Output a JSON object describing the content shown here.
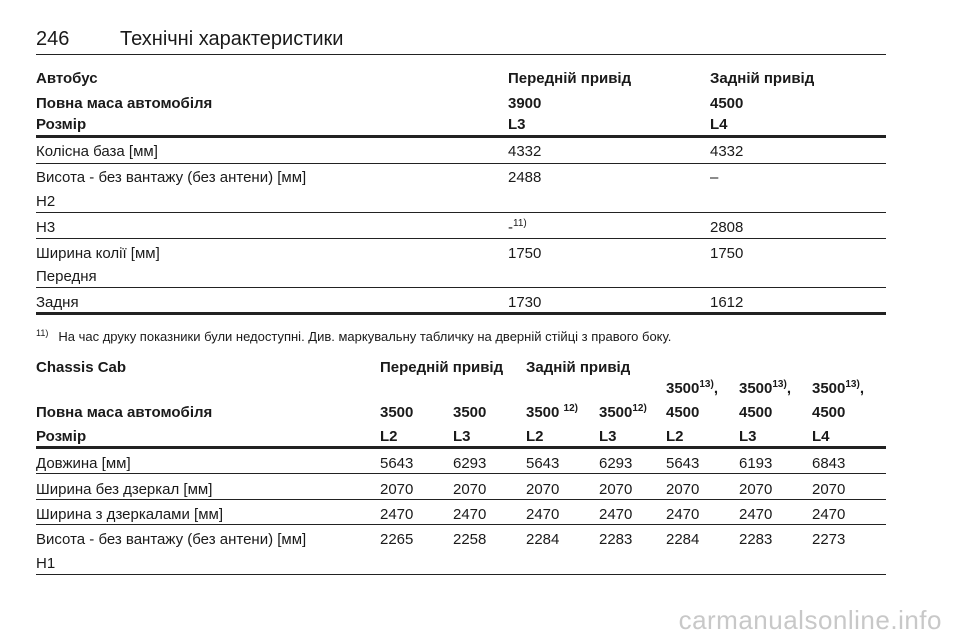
{
  "page": {
    "number": "246",
    "title": "Технічні характеристики"
  },
  "table1": {
    "header": {
      "vehicle_label": "Автобус",
      "front_drive": "Передній привід",
      "rear_drive": "Задній привід",
      "gvw_label": "Повна маса автомобіля",
      "gvw_front": "3900",
      "gvw_rear": "4500",
      "size_label": "Розмір",
      "size_front": "L3",
      "size_rear": "L4"
    },
    "rows": {
      "wheelbase": {
        "label": "Колісна база [мм]",
        "front": "4332",
        "rear": "4332"
      },
      "height": {
        "label": "Висота - без вантажу (без антени) [мм]",
        "sublabel": "H2",
        "front": "2488",
        "rear": "–"
      },
      "h3": {
        "label": "H3",
        "front": "-",
        "front_sup": "11)",
        "rear": "2808"
      },
      "track": {
        "label": "Ширина колії [мм]",
        "sublabel": "Передня",
        "front": "1750",
        "rear": "1750"
      },
      "rear_track": {
        "label": "Задня",
        "front": "1730",
        "rear": "1612"
      }
    }
  },
  "footnote": {
    "mark": "11)",
    "text": "На час друку показники були недоступні. Див. маркувальну табличку на дверній стійці з правого боку."
  },
  "table2": {
    "header": {
      "vehicle_label": "Chassis Cab",
      "front_drive": "Передній привід",
      "rear_drive": "Задній привід",
      "gvw_label": "Повна маса автомобіля",
      "gvw": [
        {
          "top": "",
          "main": "3500",
          "sup": ""
        },
        {
          "top": "",
          "main": "3500",
          "sup": ""
        },
        {
          "top": "",
          "main": "3500 ",
          "sup": "12)"
        },
        {
          "top": "",
          "main": "3500",
          "sup": "12)"
        },
        {
          "top": "3500",
          "top_sup": "13)",
          "top_suffix": ",",
          "main": "4500",
          "sup": ""
        },
        {
          "top": "3500",
          "top_sup": "13)",
          "top_suffix": ",",
          "main": "4500",
          "sup": ""
        },
        {
          "top": "3500",
          "top_sup": "13)",
          "top_suffix": ",",
          "main": "4500",
          "sup": ""
        }
      ],
      "size_label": "Розмір",
      "sizes": [
        "L2",
        "L3",
        "L2",
        "L3",
        "L2",
        "L3",
        "L4"
      ]
    },
    "rows": [
      {
        "label": "Довжина [мм]",
        "values": [
          "5643",
          "6293",
          "5643",
          "6293",
          "5643",
          "6193",
          "6843"
        ]
      },
      {
        "label": "Ширина без дзеркал [мм]",
        "values": [
          "2070",
          "2070",
          "2070",
          "2070",
          "2070",
          "2070",
          "2070"
        ]
      },
      {
        "label": "Ширина з дзеркалами [мм]",
        "values": [
          "2470",
          "2470",
          "2470",
          "2470",
          "2470",
          "2470",
          "2470"
        ]
      },
      {
        "label": "Висота - без вантажу (без антени) [мм]",
        "sublabel": "H1",
        "values": [
          "2265",
          "2258",
          "2284",
          "2283",
          "2284",
          "2283",
          "2273"
        ]
      }
    ]
  },
  "watermark": "carmanualsonline.info"
}
